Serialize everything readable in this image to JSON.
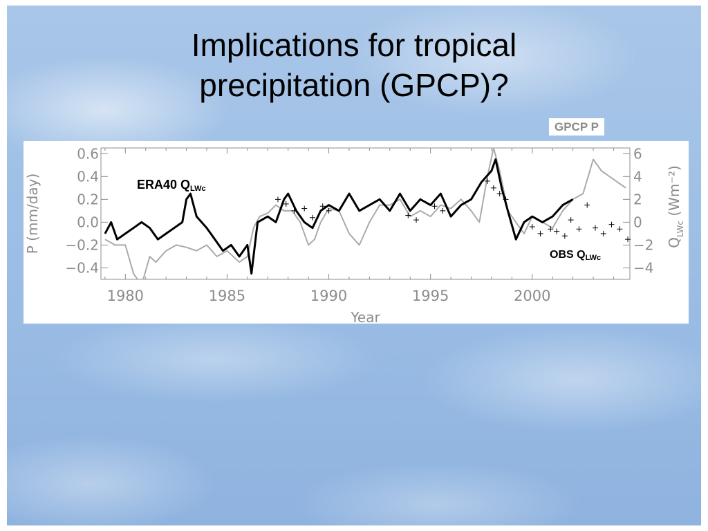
{
  "slide": {
    "title_line1": "Implications for tropical",
    "title_line2": "precipitation (GPCP)?"
  },
  "labels": {
    "gpcp": "GPCP P",
    "era_main": "ERA40 Q",
    "era_sub": "LWc",
    "obs_main": "OBS Q",
    "obs_sub": "LWc"
  },
  "chart_data": {
    "type": "line",
    "xlabel": "Year",
    "ylabel": "P  (mm/day)",
    "y2label_main": "Q",
    "y2label_sub": "LWc",
    "y2label_units": "(Wm⁻²)",
    "xlim": [
      1978.8,
      2004.8
    ],
    "ylim": [
      -0.5,
      0.65
    ],
    "y2lim": [
      -5.0,
      6.5
    ],
    "xticks": [
      1980,
      1985,
      1990,
      1995,
      2000
    ],
    "xtick_labels": [
      "1980",
      "1985",
      "1990",
      "1995",
      "2000"
    ],
    "yticks": [
      0.6,
      0.4,
      0.2,
      0.0,
      -0.2,
      -0.4
    ],
    "ytick_labels": [
      "0.6",
      "0.4",
      "0.2",
      "0.0",
      "−0.2",
      "−0.4"
    ],
    "y2ticks": [
      6,
      4,
      2,
      0,
      -2,
      -4
    ],
    "y2tick_labels": [
      "6",
      "4",
      "2",
      "0",
      "−2",
      "−4"
    ],
    "colors": {
      "gpcp": "#aaaaaa",
      "era": "#000000",
      "obs": "#000000"
    },
    "series": [
      {
        "name": "GPCP P",
        "axis": "left",
        "style": "line",
        "x": [
          1979.0,
          1979.5,
          1980.0,
          1980.4,
          1980.8,
          1981.2,
          1981.5,
          1982.0,
          1982.5,
          1983.0,
          1983.5,
          1984.0,
          1984.5,
          1985.0,
          1985.3,
          1985.6,
          1986.0,
          1986.3,
          1986.6,
          1987.0,
          1987.4,
          1987.8,
          1988.2,
          1988.6,
          1989.0,
          1989.3,
          1989.6,
          1990.0,
          1990.5,
          1991.0,
          1991.5,
          1992.0,
          1992.5,
          1993.0,
          1993.5,
          1994.0,
          1994.5,
          1995.0,
          1995.5,
          1996.0,
          1996.5,
          1997.0,
          1997.4,
          1997.8,
          1998.1,
          1998.4,
          1998.8,
          1999.2,
          1999.6,
          2000.0,
          2000.5,
          2001.0,
          2001.5,
          2002.0,
          2002.5,
          2003.0,
          2003.4,
          2003.8,
          2004.2,
          2004.6
        ],
        "y": [
          -0.15,
          -0.2,
          -0.2,
          -0.45,
          -0.55,
          -0.3,
          -0.35,
          -0.25,
          -0.2,
          -0.22,
          -0.25,
          -0.2,
          -0.3,
          -0.25,
          -0.3,
          -0.35,
          -0.3,
          -0.05,
          0.05,
          0.08,
          0.15,
          0.1,
          0.1,
          0.0,
          -0.2,
          -0.15,
          0.0,
          0.12,
          0.1,
          -0.1,
          -0.2,
          0.0,
          0.15,
          0.15,
          0.2,
          0.05,
          0.1,
          0.05,
          0.15,
          0.12,
          0.2,
          0.1,
          0.0,
          0.4,
          0.65,
          0.45,
          0.1,
          0.0,
          -0.1,
          0.05,
          0.0,
          -0.05,
          0.1,
          0.2,
          0.25,
          0.55,
          0.45,
          0.4,
          0.35,
          0.3
        ]
      },
      {
        "name": "ERA40 QLWc",
        "axis": "left",
        "style": "line",
        "x": [
          1979.0,
          1979.3,
          1979.6,
          1980.0,
          1980.4,
          1980.8,
          1981.2,
          1981.6,
          1982.0,
          1982.4,
          1982.8,
          1983.0,
          1983.2,
          1983.5,
          1984.0,
          1984.4,
          1984.8,
          1985.2,
          1985.6,
          1986.0,
          1986.2,
          1986.5,
          1987.0,
          1987.4,
          1987.8,
          1988.0,
          1988.4,
          1988.8,
          1989.2,
          1989.6,
          1990.0,
          1990.5,
          1991.0,
          1991.5,
          1992.0,
          1992.5,
          1993.0,
          1993.5,
          1994.0,
          1994.5,
          1995.0,
          1995.5,
          1996.0,
          1996.5,
          1997.0,
          1997.5,
          1998.0,
          1998.2,
          1998.5,
          1998.8,
          1999.2,
          1999.6,
          2000.0,
          2000.5,
          2001.0,
          2001.5,
          2002.0
        ],
        "y": [
          -0.1,
          0.0,
          -0.15,
          -0.1,
          -0.05,
          0.0,
          -0.05,
          -0.15,
          -0.1,
          -0.05,
          0.0,
          0.2,
          0.25,
          0.05,
          -0.05,
          -0.15,
          -0.25,
          -0.2,
          -0.3,
          -0.2,
          -0.45,
          0.0,
          0.05,
          0.0,
          0.2,
          0.25,
          0.1,
          0.0,
          -0.05,
          0.1,
          0.15,
          0.1,
          0.25,
          0.1,
          0.15,
          0.2,
          0.1,
          0.25,
          0.1,
          0.2,
          0.15,
          0.25,
          0.05,
          0.15,
          0.2,
          0.35,
          0.45,
          0.55,
          0.3,
          0.1,
          -0.15,
          0.0,
          0.05,
          0.0,
          0.05,
          0.15,
          0.2
        ]
      },
      {
        "name": "OBS QLWc",
        "axis": "right",
        "style": "markers",
        "x": [
          1987.5,
          1987.9,
          1988.3,
          1988.8,
          1989.2,
          1989.7,
          1990.0,
          1993.9,
          1994.3,
          1995.2,
          1995.6,
          1997.8,
          1998.1,
          1998.4,
          1998.7,
          2000.0,
          2000.4,
          2000.9,
          2001.2,
          2001.6,
          2001.9,
          2002.3,
          2002.7,
          2003.1,
          2003.5,
          2003.9,
          2004.3,
          2004.7
        ],
        "y": [
          2.0,
          1.6,
          1.0,
          1.2,
          0.4,
          1.4,
          1.0,
          0.6,
          0.2,
          1.4,
          1.0,
          3.6,
          3.0,
          2.5,
          2.0,
          -0.4,
          -1.0,
          -0.6,
          -0.8,
          -1.2,
          0.2,
          -0.6,
          1.5,
          -0.5,
          -1.0,
          -0.2,
          -0.6,
          -1.5
        ]
      }
    ]
  }
}
